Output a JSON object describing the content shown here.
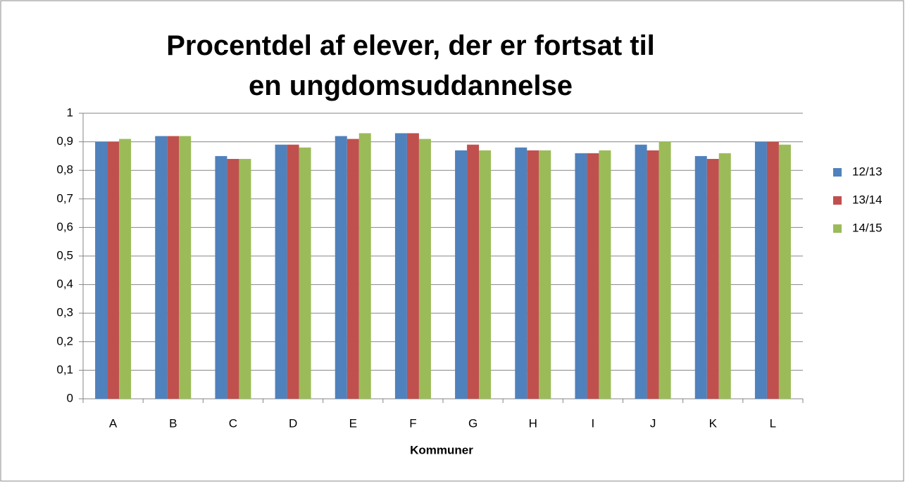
{
  "chart_data": {
    "type": "bar",
    "title": "Procentdel af elever, der er fortsat til en ungdomsuddannelse",
    "xlabel": "Kommuner",
    "categories": [
      "A",
      "B",
      "C",
      "D",
      "E",
      "F",
      "G",
      "H",
      "I",
      "J",
      "K",
      "L"
    ],
    "series": [
      {
        "name": "12/13",
        "color": "#4f81bd",
        "values": [
          0.9,
          0.92,
          0.85,
          0.89,
          0.92,
          0.93,
          0.87,
          0.88,
          0.86,
          0.89,
          0.85,
          0.9
        ]
      },
      {
        "name": "13/14",
        "color": "#c0504d",
        "values": [
          0.9,
          0.92,
          0.84,
          0.89,
          0.91,
          0.93,
          0.89,
          0.87,
          0.86,
          0.87,
          0.84,
          0.9
        ]
      },
      {
        "name": "14/15",
        "color": "#9bbb59",
        "values": [
          0.91,
          0.92,
          0.84,
          0.88,
          0.93,
          0.91,
          0.87,
          0.87,
          0.87,
          0.9,
          0.86,
          0.89
        ]
      }
    ],
    "ylim": [
      0,
      1
    ],
    "yticks": [
      0,
      {
        "value": 0.1,
        "label": "0,1"
      },
      {
        "value": 0.2,
        "label": "0,2"
      },
      {
        "value": 0.3,
        "label": "0,3"
      },
      {
        "value": 0.4,
        "label": "0,4"
      },
      {
        "value": 0.5,
        "label": "0,5"
      },
      {
        "value": 0.6,
        "label": "0,6"
      },
      {
        "value": 0.7,
        "label": "0,7"
      },
      {
        "value": 0.8,
        "label": "0,8"
      },
      {
        "value": 0.9,
        "label": "0,9"
      },
      1
    ],
    "grid": true,
    "legend": "right"
  }
}
